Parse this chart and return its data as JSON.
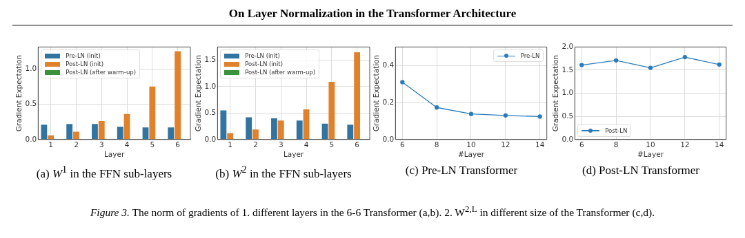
{
  "chart_data": [
    {
      "type": "other",
      "title": "On Layer Normalization in the Transformer Architecture",
      "annotations": [
        "Figure 3. The norm of gradients of 1. different layers in the 6-6 Transformer (a,b). 2. W$^{2,L}$ in different size of the Transformer (c,d)."
      ]
    },
    {
      "type": "bar",
      "title": "(a) W$^{1}$ in the FFN sub-layers",
      "xlabel": "Layer",
      "ylabel": "Gradient Expectation",
      "categories": [
        "1",
        "2",
        "3",
        "4",
        "5",
        "6"
      ],
      "series": [
        {
          "name": "Pre-LN (init)",
          "color": "#3274a1",
          "values": [
            0.21,
            0.22,
            0.22,
            0.18,
            0.17,
            0.17
          ]
        },
        {
          "name": "Post-LN (init)",
          "color": "#e1812c",
          "values": [
            0.06,
            0.11,
            0.26,
            0.36,
            0.75,
            1.25
          ]
        },
        {
          "name": "Post-LN (after warm-up)",
          "color": "#3a923a",
          "values": [
            0,
            0,
            0,
            0,
            0,
            0
          ]
        }
      ],
      "ylim": [
        0,
        1.31
      ],
      "yticks": [
        {
          "value": 0,
          "label": "0.0"
        },
        {
          "value": 0.5,
          "label": "0.5"
        },
        {
          "value": 1,
          "label": "1.0"
        }
      ],
      "grid": true,
      "legend": "top left"
    },
    {
      "type": "bar",
      "title": "(b) W$^{2}$ in the FFN sub-layers",
      "xlabel": "Layer",
      "ylabel": "Gradient Expectation",
      "categories": [
        "1",
        "2",
        "3",
        "4",
        "5",
        "6"
      ],
      "series": [
        {
          "name": "Pre-LN (init)",
          "color": "#3274a1",
          "values": [
            0.55,
            0.42,
            0.4,
            0.36,
            0.3,
            0.28
          ]
        },
        {
          "name": "Post-LN (init)",
          "color": "#e1812c",
          "values": [
            0.12,
            0.19,
            0.36,
            0.57,
            1.09,
            1.65
          ]
        },
        {
          "name": "Post-LN (after warm-up)",
          "color": "#3a923a",
          "values": [
            0,
            0,
            0.01,
            0.01,
            0,
            0
          ]
        }
      ],
      "ylim": [
        0,
        1.75
      ],
      "yticks": [
        {
          "value": 0,
          "label": "0.0"
        },
        {
          "value": 0.5,
          "label": "0.5"
        },
        {
          "value": 1,
          "label": "1.0"
        },
        {
          "value": 1.5,
          "label": "1.5"
        }
      ],
      "grid": true,
      "legend": "top left"
    },
    {
      "type": "line",
      "title": "(c) Pre-LN Transformer",
      "xlabel": "#Layer",
      "ylabel": "Gradient Expectation",
      "x": [
        6,
        8,
        10,
        12,
        14
      ],
      "series": [
        {
          "name": "Pre-LN",
          "color": "#2b7bba",
          "values": [
            0.31,
            0.173,
            0.138,
            0.13,
            0.124
          ]
        }
      ],
      "xlim": [
        5.6,
        14.4
      ],
      "xticks": [
        6,
        8,
        10,
        12,
        14
      ],
      "ylim": [
        0,
        0.5
      ],
      "yticks": [
        {
          "value": 0,
          "label": "0.0"
        },
        {
          "value": 0.2,
          "label": "0.2"
        },
        {
          "value": 0.4,
          "label": "0.4"
        }
      ],
      "grid": true,
      "legend": "top right",
      "marker": "circle",
      "line_style": "solid"
    },
    {
      "type": "line",
      "title": "(d) Post-LN Transformer",
      "xlabel": "#Layer",
      "ylabel": "Gradient Expectation",
      "x": [
        6,
        8,
        10,
        12,
        14
      ],
      "series": [
        {
          "name": "Post-LN",
          "color": "#2b7bba",
          "values": [
            1.61,
            1.71,
            1.55,
            1.78,
            1.62
          ]
        }
      ],
      "xlim": [
        5.6,
        14.4
      ],
      "xticks": [
        6,
        8,
        10,
        12,
        14
      ],
      "ylim": [
        0,
        2
      ],
      "yticks": [
        {
          "value": 0,
          "label": "0.0"
        },
        {
          "value": 0.5,
          "label": "0.5"
        },
        {
          "value": 1,
          "label": "1.0"
        },
        {
          "value": 1.5,
          "label": "1.5"
        },
        {
          "value": 2,
          "label": "2.0"
        }
      ],
      "grid": true,
      "legend": "bottom left",
      "marker": "circle",
      "line_style": "solid"
    }
  ]
}
